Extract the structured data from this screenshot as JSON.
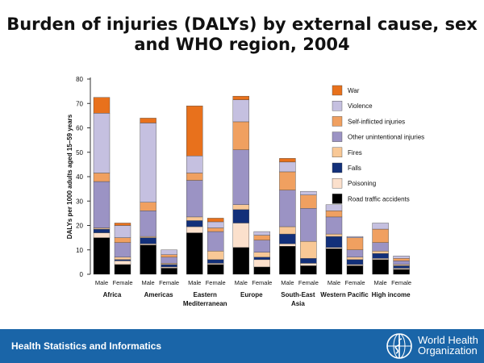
{
  "title": {
    "line1": "Burden of injuries (DALYs) by external cause, sex",
    "line2": "and WHO region, 2004"
  },
  "footer": {
    "left_text": "Health Statistics and Informatics",
    "org_line1": "World Health",
    "org_line2": "Organization"
  },
  "colors": {
    "footer_bg": "#1a65a8",
    "War": "#e8711c",
    "Violence": "#c5c0e0",
    "Self-inflicted injuries": "#f0a060",
    "Other unintentional injuries": "#9b93c4",
    "Fires": "#f8c896",
    "Falls": "#13307a",
    "Poisoning": "#fbe0cc",
    "Road traffic accidents": "#000000"
  },
  "chart_data": {
    "type": "bar",
    "stacked": true,
    "ylabel": "DALYs per 1000 adults aged 15–59 years",
    "ylim": [
      0,
      80
    ],
    "yticks": [
      0,
      10,
      20,
      30,
      40,
      50,
      60,
      70,
      80
    ],
    "legend_position": "right",
    "groups": [
      {
        "label": "Africa",
        "categories": [
          "Male",
          "Female"
        ]
      },
      {
        "label": "Americas",
        "categories": [
          "Male",
          "Female"
        ]
      },
      {
        "label": "Eastern Mediterranean",
        "categories": [
          "Male",
          "Female"
        ]
      },
      {
        "label": "Europe",
        "categories": [
          "Male",
          "Female"
        ]
      },
      {
        "label": "South-East Asia",
        "categories": [
          "Male",
          "Female"
        ]
      },
      {
        "label": "Western Pacific",
        "categories": [
          "Male",
          "Female"
        ]
      },
      {
        "label": "High income",
        "categories": [
          "Male",
          "Female"
        ]
      }
    ],
    "series": [
      {
        "name": "Road traffic accidents",
        "values": [
          15,
          4,
          12,
          2.5,
          17,
          4,
          11,
          3,
          11.5,
          3.5,
          10.5,
          3.5,
          6,
          2
        ]
      },
      {
        "name": "Poisoning",
        "values": [
          2,
          1.5,
          0.5,
          0.5,
          2.5,
          0.5,
          10,
          3,
          1,
          1,
          0.5,
          0.5,
          0.5,
          0.5
        ]
      },
      {
        "name": "Falls",
        "values": [
          1.5,
          0.5,
          2.5,
          1,
          2.5,
          1.5,
          5.5,
          1,
          4,
          2,
          4.5,
          2,
          2,
          1
        ]
      },
      {
        "name": "Fires",
        "values": [
          0.5,
          1,
          0.5,
          0.5,
          1.5,
          3.5,
          2,
          2,
          3,
          7,
          1,
          1,
          1,
          0.5
        ]
      },
      {
        "name": "Other unintentional injuries",
        "values": [
          19,
          6,
          10.5,
          2.5,
          15,
          8,
          22.5,
          5,
          15,
          13.5,
          7,
          3,
          3.5,
          1.5
        ]
      },
      {
        "name": "Self-inflicted injuries",
        "values": [
          3.5,
          2,
          3.5,
          1,
          3,
          1.5,
          11.5,
          2,
          7.5,
          5.5,
          2.5,
          5,
          5.5,
          1
        ]
      },
      {
        "name": "Violence",
        "values": [
          24.5,
          5,
          32.5,
          2,
          7,
          2.5,
          9,
          1.5,
          4,
          1.5,
          2.5,
          0.5,
          2.5,
          1
        ]
      },
      {
        "name": "War",
        "values": [
          6.5,
          1,
          2,
          0,
          20.5,
          1.5,
          1.5,
          0,
          1.5,
          0,
          0,
          0,
          0,
          0
        ]
      }
    ]
  }
}
